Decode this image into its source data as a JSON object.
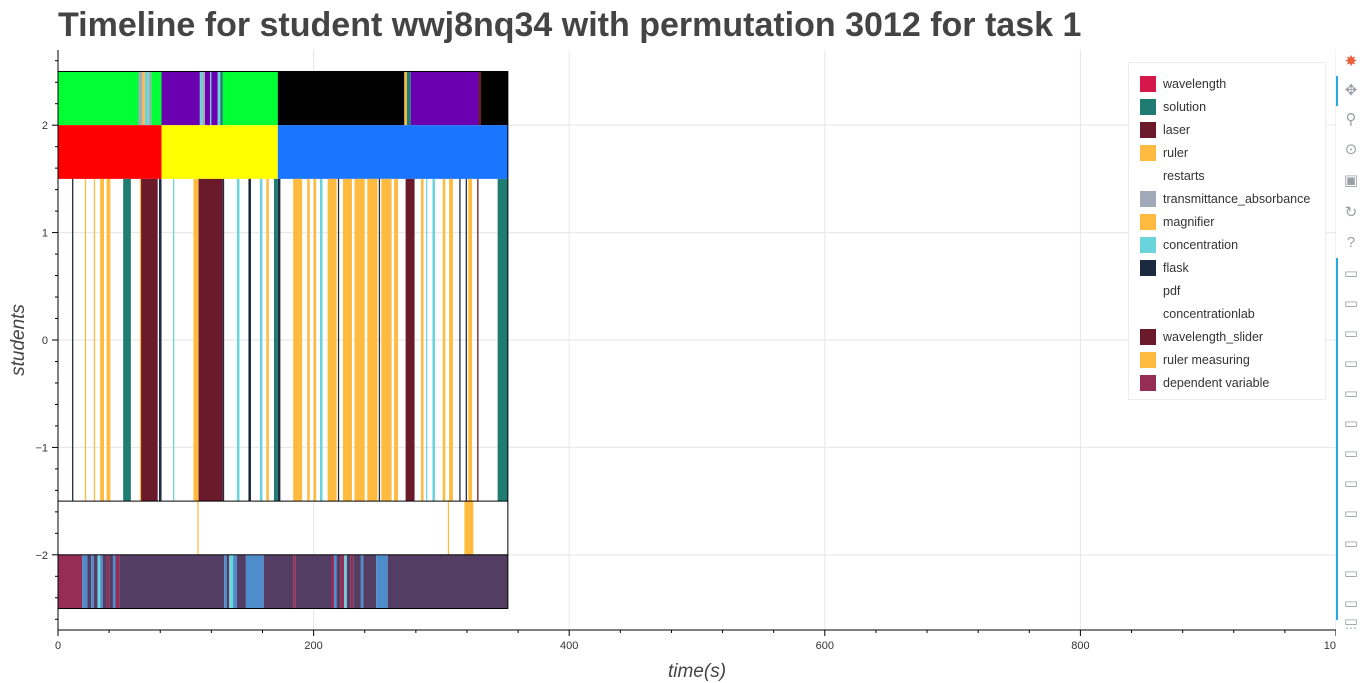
{
  "chart_data": {
    "type": "timeline",
    "title": "Timeline for student wwj8nq34 with permutation 3012 for task 1",
    "xlabel": "time(s)",
    "ylabel": "students",
    "xlim": [
      0,
      1000
    ],
    "ylim": [
      -2.7,
      2.7
    ],
    "x_ticks": [
      0,
      200,
      400,
      600,
      800,
      1000
    ],
    "y_ticks": [
      {
        "value": 2,
        "label": "2"
      },
      {
        "value": 1,
        "label": "1"
      },
      {
        "value": 0,
        "label": "0"
      },
      {
        "value": -1,
        "label": "−1"
      },
      {
        "value": -2,
        "label": "−2"
      }
    ],
    "grid": true,
    "legend_position": "top-right",
    "end_time": 352,
    "legend": [
      {
        "label": "wavelength",
        "color": "#d6174b"
      },
      {
        "label": "solution",
        "color": "#1e7c73"
      },
      {
        "label": "laser",
        "color": "#6b1a2c"
      },
      {
        "label": "ruler",
        "color": "#ffbb3f"
      },
      {
        "label": "restarts",
        "color": "#ffffff"
      },
      {
        "label": "transmittance_absorbance",
        "color": "#a0aab8"
      },
      {
        "label": "magnifier",
        "color": "#ffbb3f"
      },
      {
        "label": "concentration",
        "color": "#6bd3dc"
      },
      {
        "label": "flask",
        "color": "#1b2a3e"
      },
      {
        "label": "pdf",
        "color": "#ffffff"
      },
      {
        "label": "concentrationlab",
        "color": "#ffffff"
      },
      {
        "label": "wavelength_slider",
        "color": "#6b1a2c"
      },
      {
        "label": "ruler measuring",
        "color": "#ffbb3f"
      },
      {
        "label": "dependent variable",
        "color": "#962d55"
      }
    ],
    "lanes": [
      {
        "name": "top",
        "y_low": 2.0,
        "y_high": 2.5,
        "segments": [
          {
            "start": 0,
            "end": 63,
            "color": "#00ff33"
          },
          {
            "start": 63,
            "end": 66,
            "color": "#a0aab8"
          },
          {
            "start": 66,
            "end": 68,
            "color": "#ffbb3f"
          },
          {
            "start": 68,
            "end": 71,
            "color": "#6bd3dc"
          },
          {
            "start": 71,
            "end": 73,
            "color": "#a0aab8"
          },
          {
            "start": 73,
            "end": 81,
            "color": "#00ff33"
          },
          {
            "start": 81,
            "end": 111,
            "color": "#6a00b0"
          },
          {
            "start": 111,
            "end": 113,
            "color": "#6bd3dc"
          },
          {
            "start": 113,
            "end": 115,
            "color": "#a0aab8"
          },
          {
            "start": 115,
            "end": 119,
            "color": "#6a00b0"
          },
          {
            "start": 119,
            "end": 120,
            "color": "#6bd3dc"
          },
          {
            "start": 120,
            "end": 125,
            "color": "#6a00b0"
          },
          {
            "start": 125,
            "end": 127,
            "color": "#6bd3dc"
          },
          {
            "start": 127,
            "end": 129,
            "color": "#1e7c73"
          },
          {
            "start": 129,
            "end": 172,
            "color": "#00ff33"
          },
          {
            "start": 172,
            "end": 271,
            "color": "#000000"
          },
          {
            "start": 271,
            "end": 273,
            "color": "#ffbb3f"
          },
          {
            "start": 273,
            "end": 276,
            "color": "#1e7c73"
          },
          {
            "start": 276,
            "end": 329,
            "color": "#6a00b0"
          },
          {
            "start": 329,
            "end": 331,
            "color": "#6b1a2c"
          },
          {
            "start": 331,
            "end": 352,
            "color": "#000000"
          }
        ]
      },
      {
        "name": "phase",
        "y_low": 1.5,
        "y_high": 2.0,
        "segments": [
          {
            "start": 0,
            "end": 81,
            "color": "#ff0000"
          },
          {
            "start": 81,
            "end": 172,
            "color": "#ffff00"
          },
          {
            "start": 172,
            "end": 352,
            "color": "#1a75ff"
          }
        ]
      },
      {
        "name": "actions",
        "y_low": -1.5,
        "y_high": 1.5,
        "segments": [
          {
            "start": 11,
            "end": 12,
            "color": "#1b2a3e"
          },
          {
            "start": 21,
            "end": 22,
            "color": "#ffbb3f"
          },
          {
            "start": 28,
            "end": 29,
            "color": "#ffbb3f"
          },
          {
            "start": 33,
            "end": 36,
            "color": "#ffbb3f"
          },
          {
            "start": 38,
            "end": 41,
            "color": "#ffbb3f"
          },
          {
            "start": 51,
            "end": 57,
            "color": "#1e7c73"
          },
          {
            "start": 64,
            "end": 65,
            "color": "#ffbb3f"
          },
          {
            "start": 65,
            "end": 78,
            "color": "#6b1a2c"
          },
          {
            "start": 79,
            "end": 81,
            "color": "#1b2a3e"
          },
          {
            "start": 90,
            "end": 91,
            "color": "#6bd3dc"
          },
          {
            "start": 106,
            "end": 110,
            "color": "#ffbb3f"
          },
          {
            "start": 110,
            "end": 129,
            "color": "#6b1a2c"
          },
          {
            "start": 129,
            "end": 130,
            "color": "#1b2a3e"
          },
          {
            "start": 140,
            "end": 142,
            "color": "#6bd3dc"
          },
          {
            "start": 149,
            "end": 151,
            "color": "#1b2a3e"
          },
          {
            "start": 158,
            "end": 160,
            "color": "#6bd3dc"
          },
          {
            "start": 163,
            "end": 165,
            "color": "#ffbb3f"
          },
          {
            "start": 169,
            "end": 172,
            "color": "#1e7c73"
          },
          {
            "start": 172,
            "end": 174,
            "color": "#1b2a3e"
          },
          {
            "start": 184,
            "end": 191,
            "color": "#ffbb3f"
          },
          {
            "start": 195,
            "end": 197,
            "color": "#ffbb3f"
          },
          {
            "start": 200,
            "end": 202,
            "color": "#ffbb3f"
          },
          {
            "start": 205,
            "end": 207,
            "color": "#6bd3dc"
          },
          {
            "start": 211,
            "end": 218,
            "color": "#ffbb3f"
          },
          {
            "start": 219,
            "end": 220,
            "color": "#1b2a3e"
          },
          {
            "start": 223,
            "end": 230,
            "color": "#ffbb3f"
          },
          {
            "start": 232,
            "end": 240,
            "color": "#ffbb3f"
          },
          {
            "start": 242,
            "end": 250,
            "color": "#ffbb3f"
          },
          {
            "start": 251,
            "end": 252,
            "color": "#1b2a3e"
          },
          {
            "start": 253,
            "end": 261,
            "color": "#ffbb3f"
          },
          {
            "start": 263,
            "end": 266,
            "color": "#ffbb3f"
          },
          {
            "start": 272,
            "end": 279,
            "color": "#6b1a2c"
          },
          {
            "start": 284,
            "end": 286,
            "color": "#ffbb3f"
          },
          {
            "start": 288,
            "end": 289,
            "color": "#6bd3dc"
          },
          {
            "start": 293,
            "end": 295,
            "color": "#6bd3dc"
          },
          {
            "start": 301,
            "end": 303,
            "color": "#ffbb3f"
          },
          {
            "start": 306,
            "end": 309,
            "color": "#ffbb3f"
          },
          {
            "start": 314,
            "end": 315,
            "color": "#1b2a3e"
          },
          {
            "start": 319,
            "end": 320,
            "color": "#1b2a3e"
          },
          {
            "start": 321,
            "end": 324,
            "color": "#ffbb3f"
          },
          {
            "start": 328,
            "end": 329,
            "color": "#6b1a2c"
          },
          {
            "start": 344,
            "end": 352,
            "color": "#1e7c73"
          }
        ]
      },
      {
        "name": "measuring",
        "y_low": -2.0,
        "y_high": -1.5,
        "segments": [
          {
            "start": 109,
            "end": 110,
            "color": "#ffbb3f"
          },
          {
            "start": 305,
            "end": 306,
            "color": "#ffbb3f"
          },
          {
            "start": 318,
            "end": 325,
            "color": "#ffbb3f"
          }
        ]
      },
      {
        "name": "bottom",
        "y_low": -2.5,
        "y_high": -2.0,
        "segments": [
          {
            "start": 0,
            "end": 19,
            "color": "#962d55"
          },
          {
            "start": 19,
            "end": 23,
            "color": "#4e8ccb"
          },
          {
            "start": 23,
            "end": 26,
            "color": "#543d63"
          },
          {
            "start": 26,
            "end": 28,
            "color": "#4e8ccb"
          },
          {
            "start": 28,
            "end": 31,
            "color": "#543d63"
          },
          {
            "start": 31,
            "end": 33,
            "color": "#6bd3dc"
          },
          {
            "start": 33,
            "end": 35,
            "color": "#4e8ccb"
          },
          {
            "start": 35,
            "end": 38,
            "color": "#543d63"
          },
          {
            "start": 38,
            "end": 40,
            "color": "#962d55"
          },
          {
            "start": 40,
            "end": 43,
            "color": "#543d63"
          },
          {
            "start": 43,
            "end": 45,
            "color": "#4e8ccb"
          },
          {
            "start": 45,
            "end": 48,
            "color": "#962d55"
          },
          {
            "start": 48,
            "end": 130,
            "color": "#543d63"
          },
          {
            "start": 130,
            "end": 132,
            "color": "#4e8ccb"
          },
          {
            "start": 132,
            "end": 134,
            "color": "#543d63"
          },
          {
            "start": 134,
            "end": 137,
            "color": "#6bd3dc"
          },
          {
            "start": 137,
            "end": 140,
            "color": "#4e8ccb"
          },
          {
            "start": 140,
            "end": 147,
            "color": "#543d63"
          },
          {
            "start": 147,
            "end": 161,
            "color": "#4e8ccb"
          },
          {
            "start": 161,
            "end": 184,
            "color": "#543d63"
          },
          {
            "start": 184,
            "end": 186,
            "color": "#962d55"
          },
          {
            "start": 186,
            "end": 214,
            "color": "#543d63"
          },
          {
            "start": 214,
            "end": 216,
            "color": "#962d55"
          },
          {
            "start": 216,
            "end": 218,
            "color": "#4e8ccb"
          },
          {
            "start": 218,
            "end": 221,
            "color": "#543d63"
          },
          {
            "start": 221,
            "end": 224,
            "color": "#962d55"
          },
          {
            "start": 224,
            "end": 226,
            "color": "#6bd3dc"
          },
          {
            "start": 226,
            "end": 229,
            "color": "#543d63"
          },
          {
            "start": 229,
            "end": 231,
            "color": "#962d55"
          },
          {
            "start": 231,
            "end": 237,
            "color": "#543d63"
          },
          {
            "start": 237,
            "end": 239,
            "color": "#4e8ccb"
          },
          {
            "start": 239,
            "end": 249,
            "color": "#543d63"
          },
          {
            "start": 249,
            "end": 258,
            "color": "#4e8ccb"
          },
          {
            "start": 258,
            "end": 352,
            "color": "#543d63"
          }
        ]
      }
    ]
  },
  "toolbar": {
    "tools": [
      {
        "name": "bokeh-logo-icon",
        "glyph": "✸",
        "color": "#e8623b"
      },
      {
        "name": "pan-tool-icon",
        "glyph": "✥"
      },
      {
        "name": "box-zoom-tool-icon",
        "glyph": "⚲"
      },
      {
        "name": "wheel-zoom-tool-icon",
        "glyph": "⊙"
      },
      {
        "name": "save-tool-icon",
        "glyph": "▣"
      },
      {
        "name": "reset-tool-icon",
        "glyph": "↻"
      },
      {
        "name": "help-tool-icon",
        "glyph": "?"
      },
      {
        "name": "hover-tool-icon",
        "glyph": "▭"
      },
      {
        "name": "hover-tool-icon",
        "glyph": "▭"
      },
      {
        "name": "hover-tool-icon",
        "glyph": "▭"
      },
      {
        "name": "hover-tool-icon",
        "glyph": "▭"
      },
      {
        "name": "hover-tool-icon",
        "glyph": "▭"
      },
      {
        "name": "hover-tool-icon",
        "glyph": "▭"
      },
      {
        "name": "hover-tool-icon",
        "glyph": "▭"
      },
      {
        "name": "hover-tool-icon",
        "glyph": "▭"
      },
      {
        "name": "hover-tool-icon",
        "glyph": "▭"
      },
      {
        "name": "hover-tool-icon",
        "glyph": "▭"
      },
      {
        "name": "hover-tool-icon",
        "glyph": "▭"
      },
      {
        "name": "hover-tool-icon",
        "glyph": "▭"
      },
      {
        "name": "hover-tool-icon",
        "glyph": "▭"
      },
      {
        "name": "more-tools-icon",
        "glyph": "⋯"
      }
    ]
  }
}
